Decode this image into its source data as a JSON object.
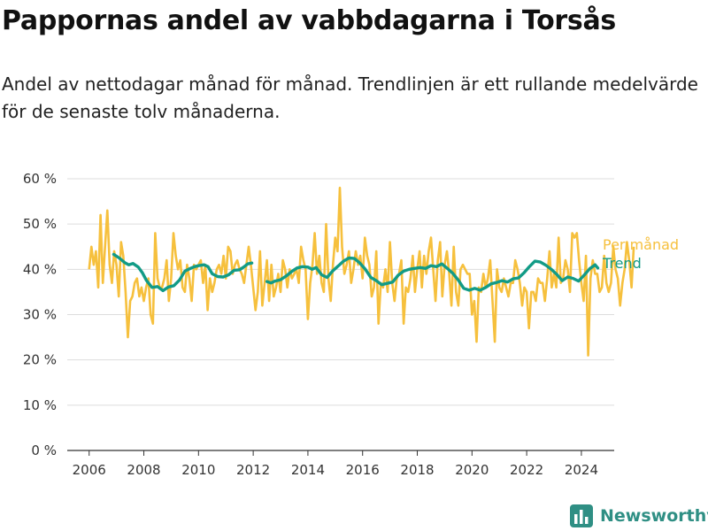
{
  "title": "Pappornas andel av vabbdagarna i Torsås",
  "subtitle": "Andel av nettodagar månad för månad. Trendlinjen är ett rullande medelvärde för de senaste tolv månaderna.",
  "brand": {
    "name": "Newsworthy",
    "icon": "bar-chart-logo-icon"
  },
  "colors": {
    "monthly": "#f6c03d",
    "trend": "#129b86",
    "grid": "#dddddd",
    "axis": "#333333"
  },
  "chart_data": {
    "type": "line",
    "title": "Pappornas andel av vabbdagarna i Torsås",
    "subtitle": "Andel av nettodagar månad för månad. Trendlinjen är ett rullande medelvärde för de senaste tolv månaderna.",
    "xlabel": "",
    "ylabel": "",
    "xlim": [
      2005.2,
      2025.2
    ],
    "ylim": [
      0,
      60
    ],
    "y_ticks": [
      0,
      10,
      20,
      30,
      40,
      50,
      60
    ],
    "y_tick_labels": [
      "0 %",
      "10 %",
      "20 %",
      "30 %",
      "40 %",
      "50 %",
      "60 %"
    ],
    "x_ticks": [
      2006,
      2008,
      2010,
      2012,
      2014,
      2016,
      2018,
      2020,
      2022,
      2024
    ],
    "x_tick_labels": [
      "2006",
      "2008",
      "2010",
      "2012",
      "2014",
      "2016",
      "2018",
      "2020",
      "2022",
      "2024"
    ],
    "grid": "horizontal",
    "legend": "right, at line ends",
    "series": [
      {
        "name": "Per månad",
        "color": "#f6c03d",
        "x_start": 2006.0,
        "x_step_months": 1,
        "values": [
          40,
          45,
          41,
          44,
          36,
          52,
          37,
          45,
          53,
          41,
          37,
          44,
          41,
          34,
          46,
          43,
          35,
          25,
          33,
          34,
          37,
          38,
          34,
          36,
          33,
          36,
          38,
          30,
          28,
          48,
          38,
          36,
          36,
          38,
          42,
          33,
          38,
          48,
          43,
          40,
          42,
          36,
          35,
          41,
          38,
          33,
          41,
          40,
          41,
          42,
          37,
          41,
          31,
          38,
          35,
          37,
          40,
          41,
          39,
          43,
          38,
          45,
          44,
          39,
          41,
          42,
          40,
          39,
          37,
          41,
          45,
          41,
          36,
          31,
          35,
          44,
          32,
          37,
          42,
          33,
          41,
          34,
          36,
          39,
          35,
          42,
          40,
          36,
          40,
          38,
          39,
          40,
          37,
          45,
          42,
          40,
          29,
          37,
          41,
          48,
          39,
          43,
          37,
          35,
          50,
          38,
          33,
          41,
          47,
          44,
          58,
          45,
          39,
          41,
          44,
          37,
          40,
          44,
          41,
          43,
          38,
          47,
          43,
          41,
          34,
          36,
          44,
          28,
          37,
          36,
          40,
          35,
          46,
          37,
          33,
          38,
          39,
          42,
          28,
          36,
          35,
          38,
          43,
          35,
          40,
          44,
          36,
          43,
          39,
          44,
          47,
          40,
          33,
          42,
          46,
          34,
          41,
          44,
          39,
          32,
          45,
          35,
          32,
          40,
          41,
          40,
          39,
          39,
          30,
          33,
          24,
          36,
          35,
          39,
          36,
          38,
          42,
          33,
          24,
          40,
          36,
          35,
          38,
          36,
          34,
          37,
          37,
          42,
          40,
          37,
          32,
          36,
          35,
          27,
          35,
          35,
          33,
          38,
          37,
          37,
          33,
          38,
          44,
          36,
          39,
          36,
          47,
          37,
          38,
          42,
          40,
          35,
          48,
          47,
          48,
          42,
          37,
          33,
          43,
          21,
          38,
          42,
          39,
          39,
          35,
          36,
          43,
          37,
          35,
          37,
          45,
          40,
          38,
          32,
          37,
          40,
          46,
          42,
          36,
          45
        ]
      },
      {
        "name": "Trend",
        "color": "#129b86",
        "points": [
          [
            2006.9,
            43.3
          ],
          [
            2007.1,
            42.5
          ],
          [
            2007.3,
            41.5
          ],
          [
            2007.45,
            41.0
          ],
          [
            2007.6,
            41.3
          ],
          [
            2007.8,
            40.5
          ],
          [
            2007.95,
            39.2
          ],
          [
            2008.1,
            37.5
          ],
          [
            2008.3,
            36.0
          ],
          [
            2008.5,
            36.2
          ],
          [
            2008.7,
            35.3
          ],
          [
            2008.9,
            36.1
          ],
          [
            2009.1,
            36.4
          ],
          [
            2009.3,
            37.6
          ],
          [
            2009.5,
            39.6
          ],
          [
            2009.7,
            40.2
          ],
          [
            2009.85,
            40.6
          ],
          [
            2010.0,
            40.8
          ],
          [
            2010.2,
            41.0
          ],
          [
            2010.35,
            40.6
          ],
          [
            2010.5,
            39.0
          ],
          [
            2010.7,
            38.4
          ],
          [
            2010.9,
            38.3
          ],
          [
            2011.1,
            38.8
          ],
          [
            2011.3,
            39.8
          ],
          [
            2011.5,
            39.9
          ],
          [
            2011.65,
            40.5
          ],
          [
            2011.8,
            41.2
          ],
          [
            2011.95,
            41.4
          ],
          [
            null,
            null
          ],
          [
            2012.5,
            37.3
          ],
          [
            2012.65,
            37.0
          ],
          [
            2012.8,
            37.4
          ],
          [
            2013.0,
            37.7
          ],
          [
            2013.2,
            38.5
          ],
          [
            2013.4,
            39.5
          ],
          [
            2013.6,
            40.3
          ],
          [
            2013.8,
            40.6
          ],
          [
            2014.0,
            40.5
          ],
          [
            2014.15,
            40.0
          ],
          [
            2014.3,
            40.4
          ],
          [
            2014.5,
            38.8
          ],
          [
            2014.7,
            38.2
          ],
          [
            2014.9,
            39.6
          ],
          [
            2015.1,
            40.7
          ],
          [
            2015.3,
            41.8
          ],
          [
            2015.5,
            42.5
          ],
          [
            2015.7,
            42.4
          ],
          [
            2015.9,
            41.4
          ],
          [
            2016.1,
            40.0
          ],
          [
            2016.3,
            38.2
          ],
          [
            2016.5,
            37.5
          ],
          [
            2016.7,
            36.6
          ],
          [
            2016.9,
            36.9
          ],
          [
            2017.1,
            37.2
          ],
          [
            2017.3,
            38.7
          ],
          [
            2017.5,
            39.6
          ],
          [
            2017.7,
            40.0
          ],
          [
            2017.9,
            40.2
          ],
          [
            2018.1,
            40.4
          ],
          [
            2018.3,
            40.2
          ],
          [
            2018.5,
            40.8
          ],
          [
            2018.7,
            40.6
          ],
          [
            2018.9,
            41.2
          ],
          [
            2019.1,
            40.2
          ],
          [
            2019.3,
            39.1
          ],
          [
            2019.5,
            37.6
          ],
          [
            2019.7,
            35.8
          ],
          [
            2019.9,
            35.4
          ],
          [
            2020.1,
            35.8
          ],
          [
            2020.3,
            35.4
          ],
          [
            2020.5,
            36.0
          ],
          [
            2020.7,
            36.8
          ],
          [
            2020.9,
            37.1
          ],
          [
            2021.1,
            37.5
          ],
          [
            2021.3,
            37.2
          ],
          [
            2021.5,
            37.9
          ],
          [
            2021.7,
            38.1
          ],
          [
            2021.9,
            39.2
          ],
          [
            2022.1,
            40.6
          ],
          [
            2022.3,
            41.8
          ],
          [
            2022.5,
            41.6
          ],
          [
            2022.7,
            40.9
          ],
          [
            2022.9,
            40.0
          ],
          [
            2023.1,
            38.9
          ],
          [
            2023.3,
            37.5
          ],
          [
            2023.5,
            38.3
          ],
          [
            2023.7,
            38.0
          ],
          [
            2023.9,
            37.4
          ],
          [
            2024.1,
            38.7
          ],
          [
            2024.3,
            40.1
          ],
          [
            2024.5,
            41.0
          ],
          [
            2024.6,
            40.3
          ]
        ]
      }
    ]
  }
}
